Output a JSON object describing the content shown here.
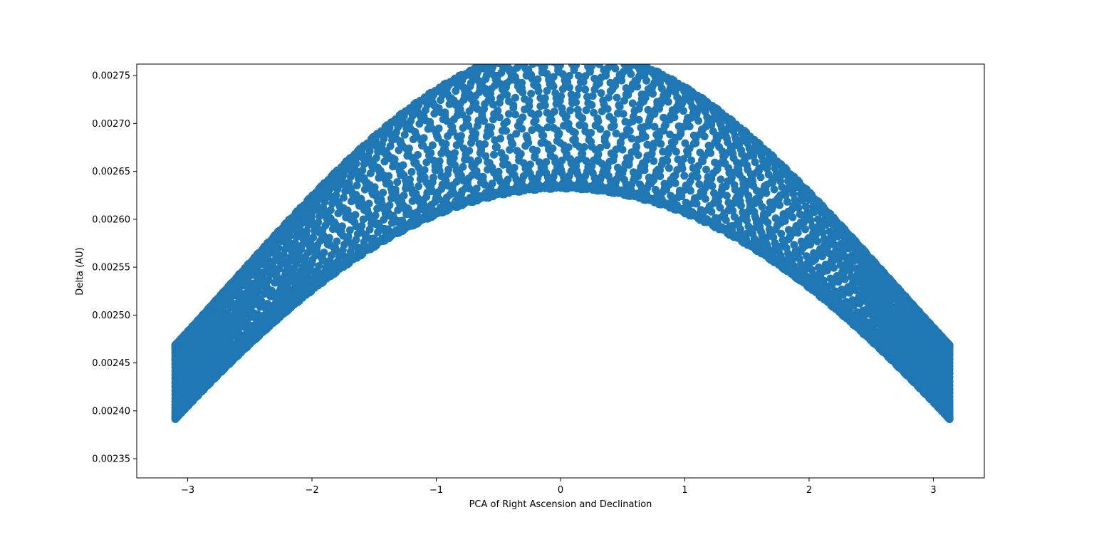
{
  "chart_data": {
    "type": "scatter",
    "title": "",
    "xlabel": "PCA of Right Ascension and Declination",
    "ylabel": "Delta (AU)",
    "xlim": [
      -3.41,
      3.41
    ],
    "ylim": [
      0.00233,
      0.002762
    ],
    "xticks": [
      -3,
      -2,
      -1,
      0,
      1,
      2,
      3
    ],
    "xtick_labels": [
      "−3",
      "−2",
      "−1",
      "0",
      "1",
      "2",
      "3"
    ],
    "yticks": [
      0.00235,
      0.0024,
      0.00245,
      0.0025,
      0.00255,
      0.0026,
      0.00265,
      0.0027,
      0.00275
    ],
    "ytick_labels": [
      "0.00235",
      "0.00240",
      "0.00245",
      "0.00250",
      "0.00255",
      "0.00260",
      "0.00265",
      "0.00270",
      "0.00275"
    ],
    "grid": false,
    "legend": "none",
    "series": [
      {
        "color": "#1f77b4",
        "points_described_by": "periodic curve",
        "x_range": [
          -3.1,
          3.13
        ],
        "envelope_center": 0.0027,
        "envelope_edge": 0.00243,
        "oscillation_amplitude": 7e-05,
        "loops": 14
      }
    ]
  }
}
